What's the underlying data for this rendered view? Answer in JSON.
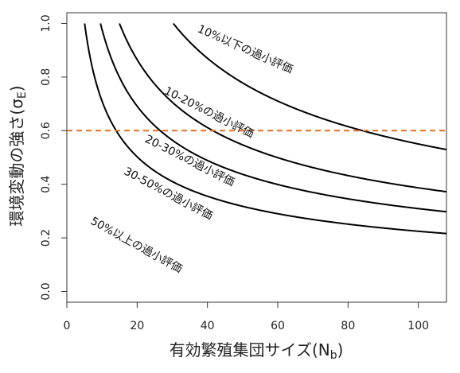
{
  "chart_data": {
    "type": "line",
    "xlabel": "有効繁殖集団サイズ(N",
    "xlabel_sub": "b",
    "xlabel_close": ")",
    "ylabel": "環境変動の強さ(σ",
    "ylabel_sub": "E",
    "ylabel_close": ")",
    "xlim": [
      0,
      108
    ],
    "ylim": [
      -0.04,
      1.04
    ],
    "x_ticks": [
      0,
      20,
      40,
      60,
      80,
      100
    ],
    "x_tick_labels": [
      "0",
      "20",
      "40",
      "60",
      "80",
      "100"
    ],
    "y_ticks": [
      0.0,
      0.2,
      0.4,
      0.6,
      0.8,
      1.0
    ],
    "y_tick_labels": [
      "0.0",
      "0.2",
      "0.4",
      "0.6",
      "0.8",
      "1.0"
    ],
    "grid": false,
    "series": [
      {
        "k": 5.05,
        "x_start": 5.05,
        "x_end": 108
      },
      {
        "k": 9.56,
        "x_start": 9.56,
        "x_end": 108
      },
      {
        "k": 14.96,
        "x_start": 14.96,
        "x_end": 108
      },
      {
        "k": 30.28,
        "x_start": 30.28,
        "x_end": 108
      }
    ],
    "curve_formula": "y = sqrt(k / x)",
    "reference_line": {
      "y": 0.6,
      "color": "#e07020",
      "style": "dashed"
    },
    "annotations": [
      {
        "text": "10%以下の過小評価",
        "x": 37,
        "y": 0.97,
        "angle": 24
      },
      {
        "text": "10-20%の過小評価",
        "x": 27.5,
        "y": 0.74,
        "angle": 27
      },
      {
        "text": "20-30%の過小評価",
        "x": 22,
        "y": 0.56,
        "angle": 27
      },
      {
        "text": "30-50%の過小評価",
        "x": 16,
        "y": 0.44,
        "angle": 28
      },
      {
        "text": "50%以上の過小評価",
        "x": 6.5,
        "y": 0.255,
        "angle": 29
      }
    ],
    "colors": {
      "curve": "#000000",
      "axis": "#333333",
      "reference": "#e07020"
    }
  }
}
